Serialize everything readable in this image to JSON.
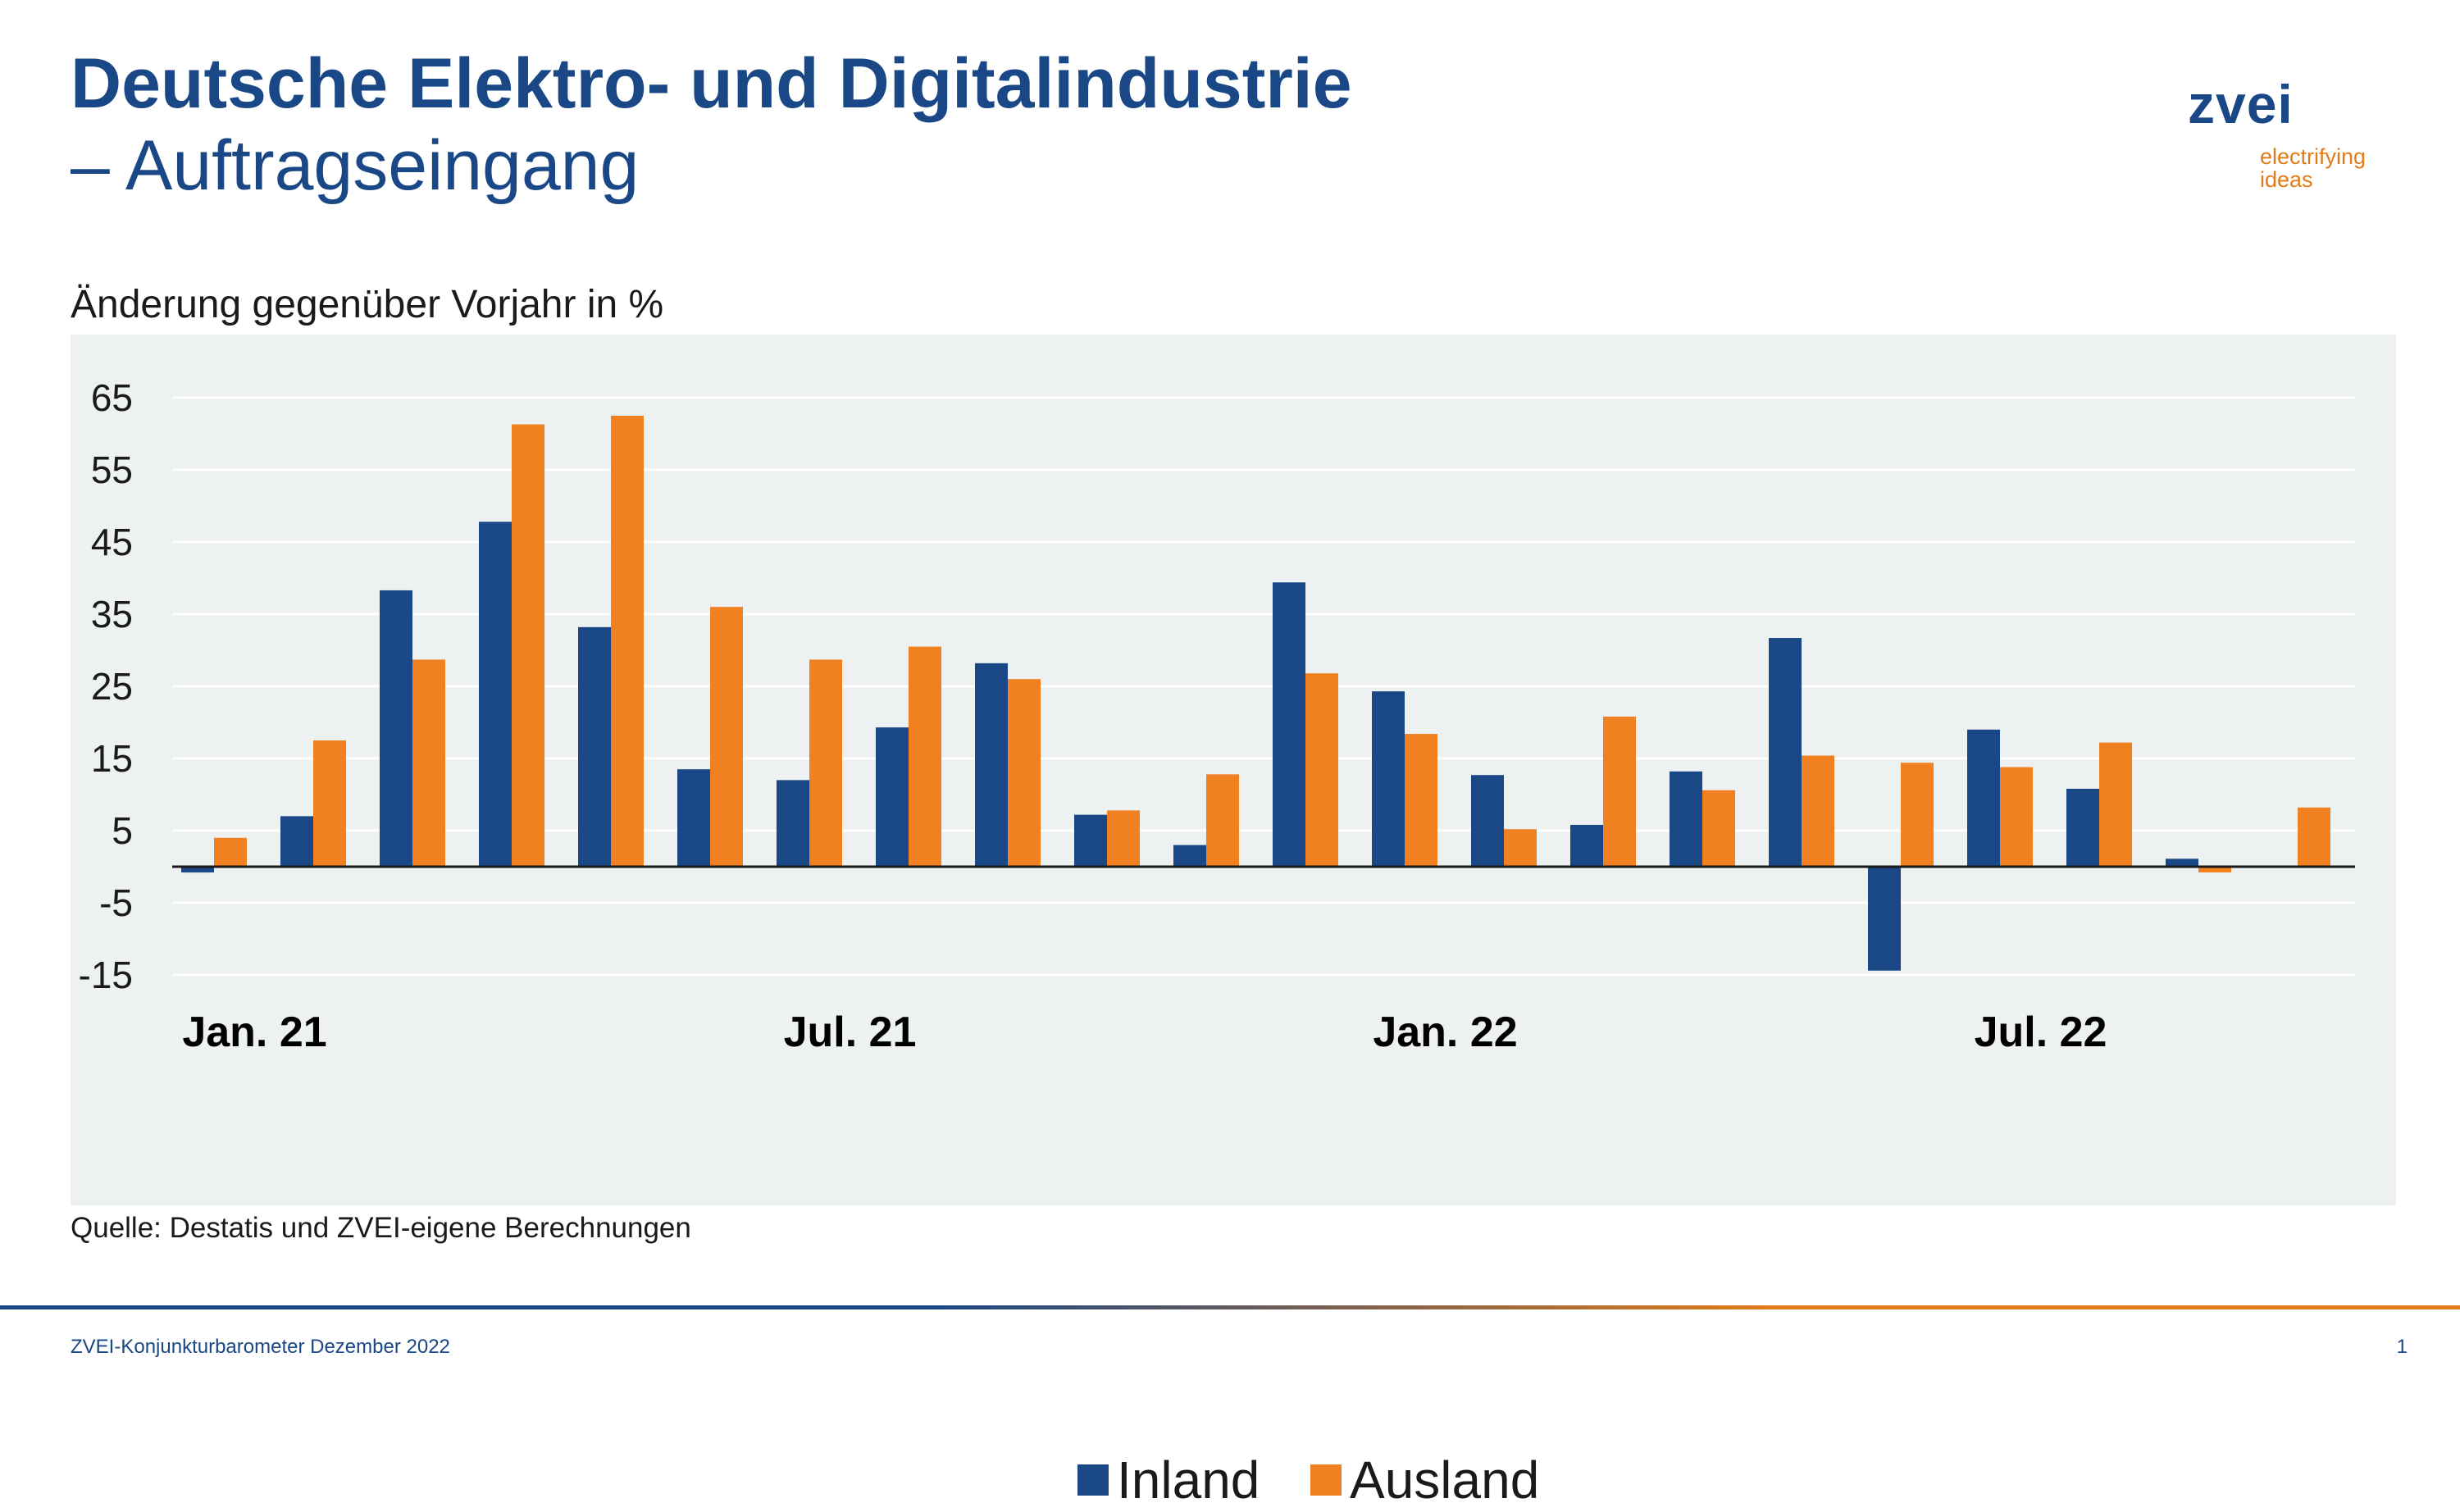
{
  "header": {
    "title": "Deutsche Elektro- und Digitalindustrie",
    "subtitle": "– Auftragseingang"
  },
  "logo": {
    "word": "zvei",
    "tagline_1": "electrifying",
    "tagline_2": "ideas",
    "color_primary": "#1a4785",
    "color_accent": "#e17b18"
  },
  "chart_data": {
    "type": "bar",
    "ylabel": "Änderung gegenüber Vorjahr in %",
    "ylim": [
      -15,
      70
    ],
    "yticks": [
      -15,
      -5,
      5,
      15,
      25,
      35,
      45,
      55,
      65
    ],
    "grid": true,
    "legend_position": "bottom-center",
    "x_tick_labels": [
      {
        "index": 0,
        "label": "Jan. 21"
      },
      {
        "index": 6,
        "label": "Jul. 21"
      },
      {
        "index": 12,
        "label": "Jan. 22"
      },
      {
        "index": 18,
        "label": "Jul. 22"
      }
    ],
    "series": [
      {
        "name": "Inland",
        "color": "#1a4785",
        "values": [
          -0.8,
          7.0,
          38.3,
          47.8,
          33.2,
          13.5,
          12.0,
          19.3,
          28.2,
          7.2,
          3.0,
          39.4,
          24.3,
          12.7,
          5.8,
          13.2,
          31.7,
          -14.4,
          19.0,
          10.8,
          1.1,
          0
        ]
      },
      {
        "name": "Ausland",
        "color": "#f08020",
        "values": [
          4.0,
          17.5,
          28.7,
          61.3,
          62.5,
          36.0,
          28.7,
          30.5,
          26.0,
          7.8,
          12.8,
          26.8,
          18.4,
          5.2,
          20.8,
          10.6,
          15.4,
          14.4,
          13.8,
          17.2,
          -0.8,
          8.2
        ]
      }
    ]
  },
  "source": "Quelle: Destatis und ZVEI-eigene Berechnungen",
  "footer": {
    "left": "ZVEI-Konjunkturbarometer Dezember 2022",
    "page_number": "1"
  }
}
